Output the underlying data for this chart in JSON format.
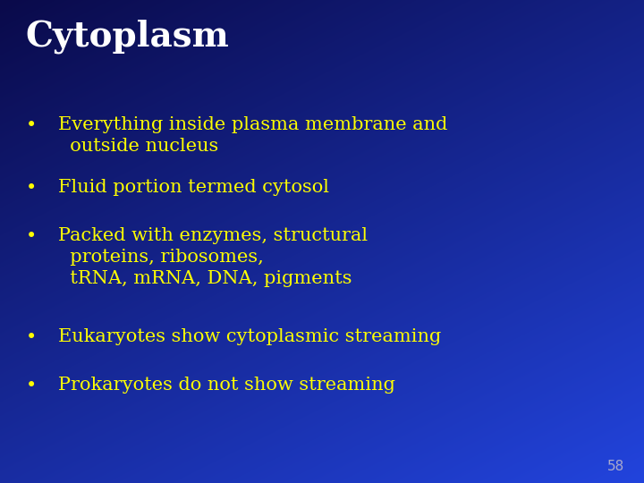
{
  "title": "Cytoplasm",
  "title_color": "#ffffff",
  "title_fontsize": 28,
  "title_bold": true,
  "bullet_color": "#ffff00",
  "bullet_fontsize": 15,
  "bullet_symbol": "•",
  "bullets": [
    "Everything inside plasma membrane and\n  outside nucleus",
    "Fluid portion termed cytosol",
    "Packed with enzymes, structural\n  proteins, ribosomes,\n  tRNA, mRNA, DNA, pigments",
    "Eukaryotes show cytoplasmic streaming",
    "Prokaryotes do not show streaming"
  ],
  "page_number": "58",
  "page_number_color": "#aaaacc",
  "page_number_fontsize": 11,
  "bg_top_left": "#0a0a4a",
  "bg_bottom_right": "#2244dd",
  "fig_width": 7.2,
  "fig_height": 5.4,
  "dpi": 100
}
